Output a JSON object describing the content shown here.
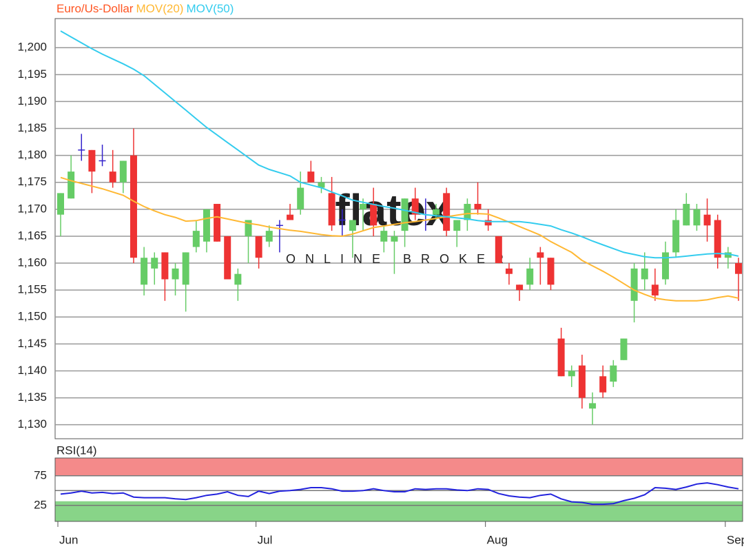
{
  "chart_data": [
    {
      "type": "candlestick",
      "title": "Euro/Us-Dollar",
      "title_color": "#ff5522",
      "watermark": [
        "flatex",
        "ONLINE BROKER"
      ],
      "ohlc": {
        "open": [
          1.169,
          1.172,
          1.181,
          1.181,
          1.179,
          1.177,
          1.175,
          1.18,
          1.156,
          1.159,
          1.162,
          1.157,
          1.156,
          1.163,
          1.164,
          1.171,
          1.165,
          1.156,
          1.165,
          1.165,
          1.164,
          1.167,
          1.169,
          1.17,
          1.177,
          1.174,
          1.173,
          1.168,
          1.166,
          1.17,
          1.171,
          1.164,
          1.164,
          1.166,
          1.172,
          1.168,
          1.169,
          1.173,
          1.166,
          1.168,
          1.171,
          1.168,
          1.165,
          1.159,
          1.156,
          1.156,
          1.162,
          1.161,
          1.146,
          1.139,
          1.141,
          1.133,
          1.139,
          1.138,
          1.142,
          1.153,
          1.157,
          1.156,
          1.157,
          1.162,
          1.167,
          1.167,
          1.169,
          1.168,
          1.161,
          1.16
        ],
        "high": [
          1.173,
          1.18,
          1.184,
          1.181,
          1.182,
          1.181,
          1.179,
          1.185,
          1.163,
          1.162,
          1.162,
          1.16,
          1.162,
          1.168,
          1.17,
          1.171,
          1.165,
          1.159,
          1.168,
          1.165,
          1.167,
          1.168,
          1.171,
          1.177,
          1.179,
          1.176,
          1.176,
          1.17,
          1.168,
          1.172,
          1.174,
          1.167,
          1.166,
          1.172,
          1.174,
          1.172,
          1.171,
          1.174,
          1.168,
          1.172,
          1.175,
          1.17,
          1.165,
          1.16,
          1.156,
          1.161,
          1.163,
          1.161,
          1.148,
          1.141,
          1.143,
          1.136,
          1.141,
          1.142,
          1.146,
          1.16,
          1.162,
          1.159,
          1.164,
          1.17,
          1.173,
          1.171,
          1.172,
          1.169,
          1.163,
          1.161
        ],
        "low": [
          1.165,
          1.172,
          1.179,
          1.173,
          1.178,
          1.174,
          1.173,
          1.16,
          1.154,
          1.156,
          1.153,
          1.154,
          1.151,
          1.162,
          1.162,
          1.164,
          1.157,
          1.153,
          1.16,
          1.159,
          1.163,
          1.162,
          1.168,
          1.169,
          1.175,
          1.173,
          1.166,
          1.165,
          1.161,
          1.166,
          1.165,
          1.162,
          1.158,
          1.163,
          1.168,
          1.166,
          1.168,
          1.165,
          1.163,
          1.166,
          1.169,
          1.166,
          1.16,
          1.156,
          1.153,
          1.155,
          1.156,
          1.155,
          1.139,
          1.137,
          1.133,
          1.13,
          1.135,
          1.137,
          1.142,
          1.149,
          1.155,
          1.153,
          1.156,
          1.161,
          1.167,
          1.166,
          1.164,
          1.159,
          1.159,
          1.153
        ],
        "close": [
          1.173,
          1.177,
          1.181,
          1.177,
          1.179,
          1.175,
          1.179,
          1.161,
          1.161,
          1.161,
          1.157,
          1.159,
          1.162,
          1.166,
          1.17,
          1.164,
          1.157,
          1.158,
          1.168,
          1.161,
          1.166,
          1.167,
          1.168,
          1.174,
          1.175,
          1.175,
          1.167,
          1.168,
          1.168,
          1.171,
          1.167,
          1.166,
          1.165,
          1.172,
          1.169,
          1.168,
          1.17,
          1.166,
          1.168,
          1.171,
          1.17,
          1.167,
          1.16,
          1.158,
          1.155,
          1.159,
          1.161,
          1.156,
          1.139,
          1.14,
          1.135,
          1.134,
          1.136,
          1.141,
          1.146,
          1.159,
          1.159,
          1.154,
          1.162,
          1.168,
          1.171,
          1.17,
          1.167,
          1.161,
          1.162,
          1.158
        ]
      },
      "up_color": "#66cc66",
      "down_color": "#ee3333",
      "doji_color": "#3322cc",
      "series": [
        {
          "name": "MOV(20)",
          "color": "#ffb833",
          "values": [
            1.1759,
            1.1753,
            1.1748,
            1.1743,
            1.1738,
            1.1732,
            1.1726,
            1.1715,
            1.1705,
            1.1697,
            1.169,
            1.1685,
            1.1678,
            1.1679,
            1.1683,
            1.1686,
            1.1682,
            1.1678,
            1.1674,
            1.1671,
            1.1667,
            1.1664,
            1.1661,
            1.1659,
            1.1656,
            1.1653,
            1.1651,
            1.165,
            1.1654,
            1.166,
            1.1666,
            1.1669,
            1.1672,
            1.1675,
            1.1677,
            1.168,
            1.1683,
            1.1686,
            1.1689,
            1.1692,
            1.1692,
            1.1691,
            1.1684,
            1.1676,
            1.1668,
            1.166,
            1.1652,
            1.164,
            1.163,
            1.162,
            1.1605,
            1.1595,
            1.1585,
            1.1574,
            1.1562,
            1.155,
            1.1542,
            1.1535,
            1.1532,
            1.153,
            1.153,
            1.153,
            1.1532,
            1.1536,
            1.1539,
            1.1535
          ]
        },
        {
          "name": "MOV(50)",
          "color": "#33ccee",
          "values": [
            1.2031,
            1.202,
            1.2009,
            1.1998,
            1.1988,
            1.1979,
            1.197,
            1.196,
            1.1948,
            1.1932,
            1.1916,
            1.19,
            1.1884,
            1.1868,
            1.1852,
            1.1838,
            1.1824,
            1.181,
            1.1796,
            1.1782,
            1.1774,
            1.1768,
            1.1762,
            1.175,
            1.1745,
            1.174,
            1.1732,
            1.1725,
            1.1717,
            1.1713,
            1.1709,
            1.1705,
            1.1702,
            1.1698,
            1.1694,
            1.169,
            1.1688,
            1.1686,
            1.1684,
            1.1682,
            1.1679,
            1.1677,
            1.1677,
            1.1677,
            1.1677,
            1.1675,
            1.1672,
            1.1669,
            1.1662,
            1.1656,
            1.1649,
            1.1641,
            1.1634,
            1.1627,
            1.162,
            1.1616,
            1.1612,
            1.161,
            1.161,
            1.1611,
            1.1613,
            1.1615,
            1.1617,
            1.1618,
            1.1617,
            1.1613
          ]
        }
      ],
      "ylim": [
        1.1274,
        1.2054
      ],
      "yticks": [
        {
          "value": 1.2,
          "label": "1,200"
        },
        {
          "value": 1.195,
          "label": "1,195"
        },
        {
          "value": 1.19,
          "label": "1,190"
        },
        {
          "value": 1.185,
          "label": "1,185"
        },
        {
          "value": 1.18,
          "label": "1,180"
        },
        {
          "value": 1.175,
          "label": "1,175"
        },
        {
          "value": 1.17,
          "label": "1,170"
        },
        {
          "value": 1.165,
          "label": "1,165"
        },
        {
          "value": 1.16,
          "label": "1,160"
        },
        {
          "value": 1.155,
          "label": "1,155"
        },
        {
          "value": 1.15,
          "label": "1,150"
        },
        {
          "value": 1.145,
          "label": "1,145"
        },
        {
          "value": 1.14,
          "label": "1,140"
        },
        {
          "value": 1.135,
          "label": "1,135"
        },
        {
          "value": 1.13,
          "label": "1,130"
        }
      ],
      "grid": true
    },
    {
      "type": "line",
      "title": "RSI(14)",
      "title_color": "#2222cc",
      "categories": [
        "Jun",
        null,
        null,
        null,
        null,
        null,
        null,
        null,
        null,
        null,
        null,
        null,
        null,
        null,
        null,
        null,
        null,
        null,
        null,
        "Jul",
        null,
        null,
        null,
        null,
        null,
        null,
        null,
        null,
        null,
        null,
        null,
        null,
        null,
        null,
        null,
        null,
        null,
        null,
        null,
        null,
        null,
        "Aug",
        null,
        null,
        null,
        null,
        null,
        null,
        null,
        null,
        null,
        null,
        null,
        null,
        null,
        null,
        null,
        null,
        null,
        null,
        null,
        null,
        null,
        null,
        "Sep",
        null
      ],
      "series": [
        {
          "name": "RSI(14)",
          "color": "#2222dd",
          "values": [
            44,
            46,
            49,
            46,
            47,
            45,
            46,
            39,
            38,
            38,
            38,
            36,
            35,
            38,
            42,
            44,
            48,
            42,
            40,
            49,
            45,
            49,
            50,
            52,
            55,
            55,
            53,
            49,
            49,
            50,
            53,
            50,
            48,
            48,
            53,
            52,
            53,
            53,
            51,
            50,
            53,
            52,
            45,
            41,
            39,
            38,
            42,
            44,
            36,
            31,
            30,
            27,
            27,
            28,
            33,
            37,
            43,
            55,
            54,
            52,
            56,
            61,
            63,
            60,
            56,
            53
          ]
        }
      ],
      "ylim": [
        -2,
        105
      ],
      "yticks": [
        75,
        25
      ],
      "grid": [
        25,
        50,
        75
      ],
      "bands": [
        {
          "from": 75,
          "to": 105,
          "color": "#f48a8a"
        },
        {
          "from": -2,
          "to": 32,
          "color": "#88d488"
        }
      ]
    }
  ]
}
